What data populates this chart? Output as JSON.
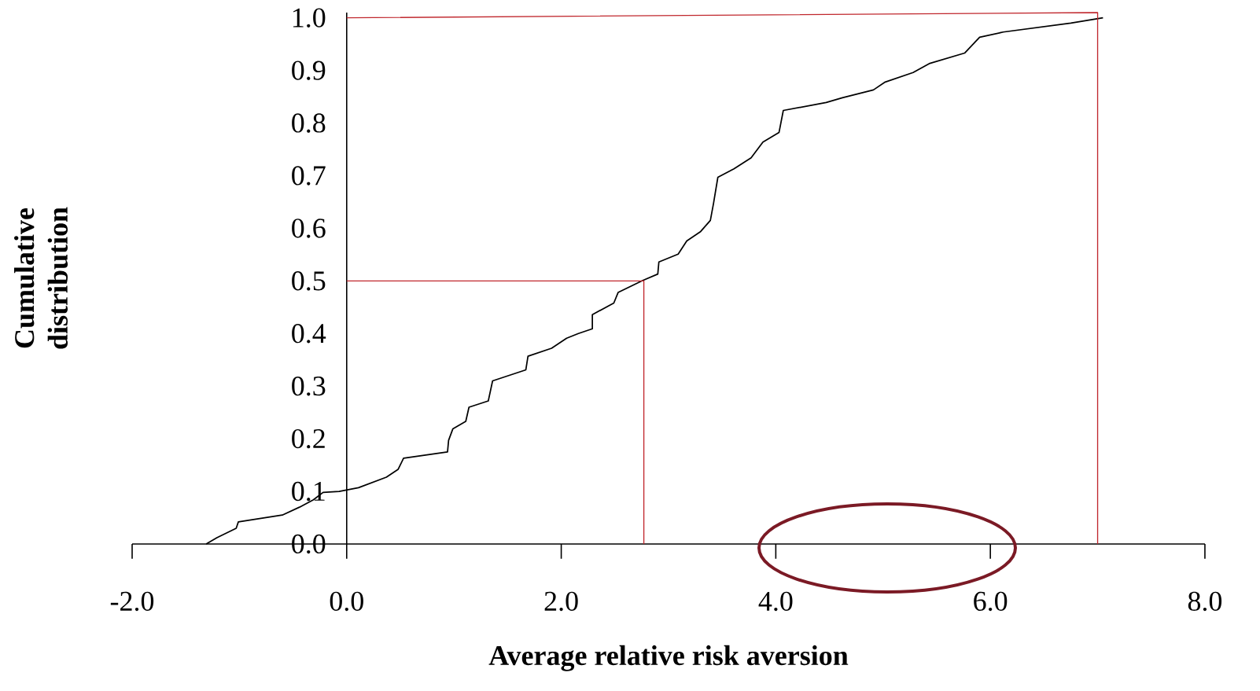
{
  "chart_data": {
    "type": "line",
    "xlabel": "Average relative risk aversion",
    "ylabel": "Cumulative distribution",
    "xlim": [
      -2,
      8
    ],
    "ylim": [
      0,
      1.01
    ],
    "xticks": [
      {
        "value": -2,
        "label": "-2.0"
      },
      {
        "value": 0,
        "label": "0.0"
      },
      {
        "value": 2,
        "label": "2.0"
      },
      {
        "value": 4,
        "label": "4.0"
      },
      {
        "value": 6,
        "label": "6.0"
      },
      {
        "value": 8,
        "label": "8.0"
      }
    ],
    "yticks": [
      {
        "value": 0,
        "label": "0.0"
      },
      {
        "value": 0.1,
        "label": "0.1"
      },
      {
        "value": 0.2,
        "label": "0.2"
      },
      {
        "value": 0.3,
        "label": "0.3"
      },
      {
        "value": 0.4,
        "label": "0.4"
      },
      {
        "value": 0.5,
        "label": "0.5"
      },
      {
        "value": 0.6,
        "label": "0.6"
      },
      {
        "value": 0.7,
        "label": "0.7"
      },
      {
        "value": 0.8,
        "label": "0.8"
      },
      {
        "value": 0.9,
        "label": "0.9"
      },
      {
        "value": 1.0,
        "label": "1.0"
      }
    ],
    "series": [
      {
        "color": "#000000",
        "x": [
          -1.31,
          -1.21,
          -1.03,
          -1.01,
          -0.6,
          -0.44,
          -0.31,
          -0.22,
          -0.07,
          0.11,
          0.37,
          0.48,
          0.53,
          0.94,
          0.95,
          0.99,
          1.11,
          1.14,
          1.32,
          1.36,
          1.67,
          1.69,
          1.91,
          2.05,
          2.16,
          2.29,
          2.29,
          2.49,
          2.53,
          2.76,
          2.9,
          2.91,
          3.09,
          3.17,
          3.3,
          3.39,
          3.42,
          3.46,
          3.61,
          3.77,
          3.88,
          4.03,
          4.07,
          4.47,
          4.62,
          4.91,
          5.02,
          5.28,
          5.43,
          5.76,
          5.9,
          6.12,
          6.75,
          7.05
        ],
        "values": [
          0,
          0.012,
          0.03,
          0.042,
          0.055,
          0.07,
          0.084,
          0.098,
          0.1,
          0.107,
          0.127,
          0.142,
          0.163,
          0.175,
          0.197,
          0.219,
          0.233,
          0.26,
          0.272,
          0.31,
          0.331,
          0.357,
          0.372,
          0.391,
          0.4,
          0.409,
          0.436,
          0.458,
          0.478,
          0.501,
          0.513,
          0.536,
          0.551,
          0.576,
          0.594,
          0.615,
          0.648,
          0.697,
          0.713,
          0.734,
          0.764,
          0.782,
          0.824,
          0.839,
          0.848,
          0.863,
          0.878,
          0.896,
          0.913,
          0.933,
          0.963,
          0.973,
          0.99,
          1.0
        ]
      },
      {
        "color": "#c0272d",
        "x": [
          0,
          2.77,
          2.77
        ],
        "values": [
          0.5,
          0.5,
          0
        ]
      },
      {
        "color": "#c0272d",
        "x": [
          0,
          7.0,
          7.0
        ],
        "values": [
          1.0,
          1.01,
          0
        ]
      }
    ]
  }
}
